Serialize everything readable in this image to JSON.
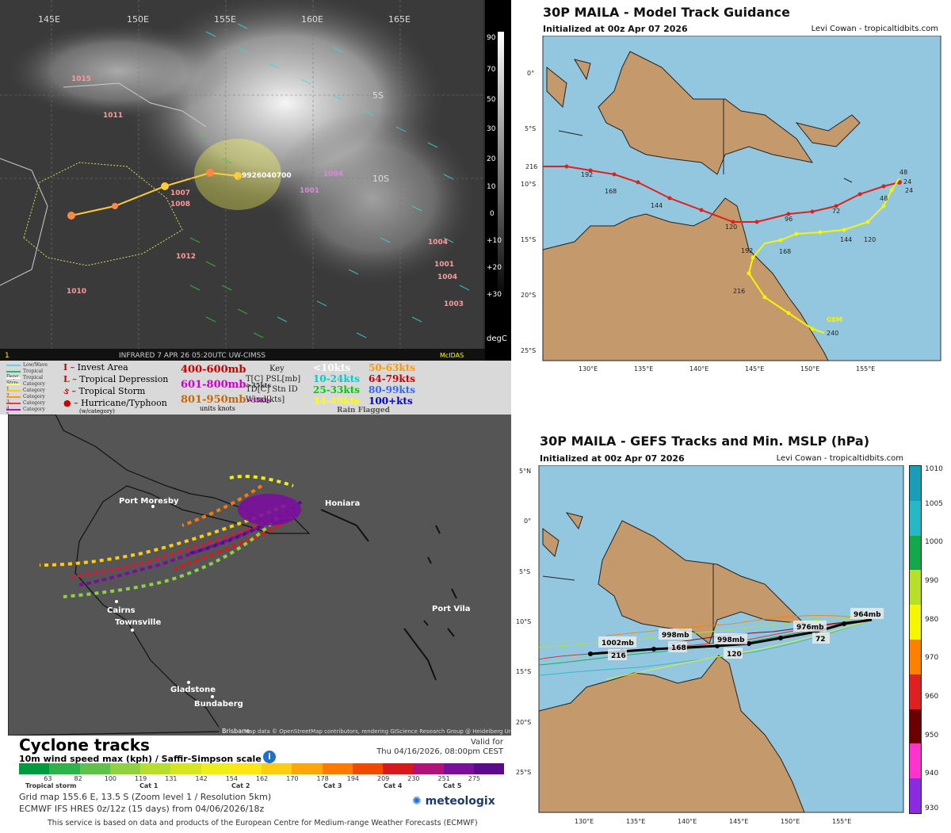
{
  "satellite": {
    "lon_labels": [
      "145E",
      "150E",
      "155E",
      "160E",
      "165E"
    ],
    "lat_labels": [
      "5S",
      "10S"
    ],
    "colorbar_labels": [
      "90",
      "70",
      "50",
      "30",
      "20",
      "10",
      "0",
      "+10",
      "+20",
      "+30"
    ],
    "colorbar_unit": "degC",
    "footer_left": "1",
    "footer": "INFRARED  7 APR 26  05:20UTC  UW-CIMSS",
    "footer_right": "McIDAS",
    "station_labels": [
      "1015",
      "1011",
      "1007",
      "1008",
      "1012",
      "1010",
      "1001",
      "1004",
      "1004",
      "1001",
      "1004",
      "1003"
    ],
    "storm_id": "9926040700"
  },
  "sat_legend": {
    "types": [
      "Low/Wave",
      "Tropical Depr",
      "Tropical Strm",
      "Category 1",
      "Category 2",
      "Category 3",
      "Category 4",
      "Category 5"
    ],
    "type_colors": [
      "#66ccff",
      "#00cc66",
      "#ffffff",
      "#ffff66",
      "#ffcc00",
      "#ff9900",
      "#ff3333",
      "#cc00cc"
    ],
    "symbols": [
      {
        "glyph": "I",
        "label": "– Invest Area"
      },
      {
        "glyph": "L",
        "label": "– Tropical Depression"
      },
      {
        "glyph": "ઙ",
        "label": "– Tropical Storm"
      },
      {
        "glyph": "●",
        "label": "– Hurricane/Typhoon"
      }
    ],
    "symbol_footnote": "(w/category)",
    "mb_ranges": [
      {
        "text": "400-600mb",
        "color": "#cc0000"
      },
      {
        "text": "601-800mb",
        "color": "#cc00cc"
      },
      {
        "text": "801-950mb",
        "color": "#cc6600"
      }
    ],
    "mb_suffix": [
      ">35kts",
      ">35kts"
    ],
    "key_title": "Key",
    "key_lines": [
      "T[C]  PSL[mb]",
      "TD[C]  Stn ID",
      "Wind[kts]"
    ],
    "key_units": "units knots",
    "wind_ranges": [
      {
        "text": "<10kts",
        "color": "#ffffff"
      },
      {
        "text": "10-24kts",
        "color": "#00cccc"
      },
      {
        "text": "25-33kts",
        "color": "#00cc00"
      },
      {
        "text": "34-49kts",
        "color": "#ffff00"
      },
      {
        "text": "50-63kts",
        "color": "#ff9900"
      },
      {
        "text": "64-79kts",
        "color": "#cc0000"
      },
      {
        "text": "80-99kts",
        "color": "#3366ff"
      },
      {
        "text": "100+kts",
        "color": "#0000cc"
      }
    ],
    "rain_flagged": "Rain Flagged"
  },
  "ecmwf": {
    "cities": [
      "Port Moresby",
      "Honiara",
      "Cairns",
      "Townsville",
      "Port Vila",
      "Gladstone",
      "Bundaberg",
      "Brisbane"
    ],
    "attribution": "Map data © OpenStreetMap contributors, rendering GIScience Research Group @ Heidelberg University",
    "title": "Cyclone tracks",
    "subtitle": "10m wind speed max (kph) / Saffir-Simpson scale",
    "valid_for": "Valid for",
    "valid_time": "Thu 04/16/2026, 08:00pm CEST",
    "scale_values": [
      "63",
      "82",
      "100",
      "119",
      "131",
      "142",
      "154",
      "162",
      "170",
      "178",
      "194",
      "209",
      "230",
      "251",
      "275"
    ],
    "scale_colors": [
      "#009a3e",
      "#2db34a",
      "#5ec24a",
      "#8fd13f",
      "#b7dd2f",
      "#d6e51f",
      "#eeee18",
      "#ffe514",
      "#ffcc0f",
      "#ffa50a",
      "#ff7a05",
      "#f04a00",
      "#d7191c",
      "#b0127a",
      "#7a0f9e",
      "#5b0a8f"
    ],
    "scale_groups": [
      "Tropical storm",
      "Cat 1",
      "Cat 2",
      "Cat 3",
      "Cat 4",
      "Cat 5"
    ],
    "grid_info": "Grid map 155.6 E, 13.5 S (Zoom level 1 / Resolution 5km)",
    "model_info": "ECMWF IFS HRES 0z/12z (15 days) from 04/06/2026/18z",
    "logo": "meteologix",
    "disclaimer": "This service is based on data and products of the European Centre for Medium-range Weather Forecasts (ECMWF)"
  },
  "model_track": {
    "title": "30P MAILA - Model Track Guidance",
    "init": "Initialized at 00z Apr 07 2026",
    "credit": "Levi Cowan - tropicaltidbits.com",
    "lat_labels": [
      "0°",
      "5°S",
      "10°S",
      "15°S",
      "20°S",
      "25°S"
    ],
    "lon_labels": [
      "130°E",
      "135°E",
      "140°E",
      "145°E",
      "150°E",
      "155°E"
    ],
    "red_hour_labels": [
      "216",
      "192",
      "168",
      "144",
      "120",
      "96",
      "72",
      "48",
      "24"
    ],
    "yellow_hour_labels": [
      "48",
      "24",
      "48",
      "120",
      "144",
      "168",
      "192",
      "216",
      "240"
    ],
    "model_label": "GEM"
  },
  "gefs": {
    "title": "30P MAILA - GEFS Tracks and Min. MSLP (hPa)",
    "init": "Initialized at 00z Apr 07 2026",
    "credit": "Levi Cowan - tropicaltidbits.com",
    "lat_labels": [
      "5°N",
      "0°",
      "5°S",
      "10°S",
      "15°S",
      "20°S",
      "25°S"
    ],
    "lon_labels": [
      "130°E",
      "135°E",
      "140°E",
      "145°E",
      "150°E",
      "155°E"
    ],
    "pressure_labels": [
      "964mb",
      "976mb",
      "998mb",
      "998mb",
      "1002mb"
    ],
    "hour_labels": [
      "72",
      "120",
      "168",
      "216"
    ],
    "colorbar_values": [
      "1010",
      "1005",
      "1000",
      "990",
      "980",
      "970",
      "960",
      "950",
      "940",
      "930"
    ],
    "colorbar_colors": [
      "#1a9eb8",
      "#27b8c8",
      "#15a84a",
      "#b8e02a",
      "#f6f600",
      "#ff7f00",
      "#e02020",
      "#6a0000",
      "#ff33cc",
      "#8a2be2"
    ]
  }
}
